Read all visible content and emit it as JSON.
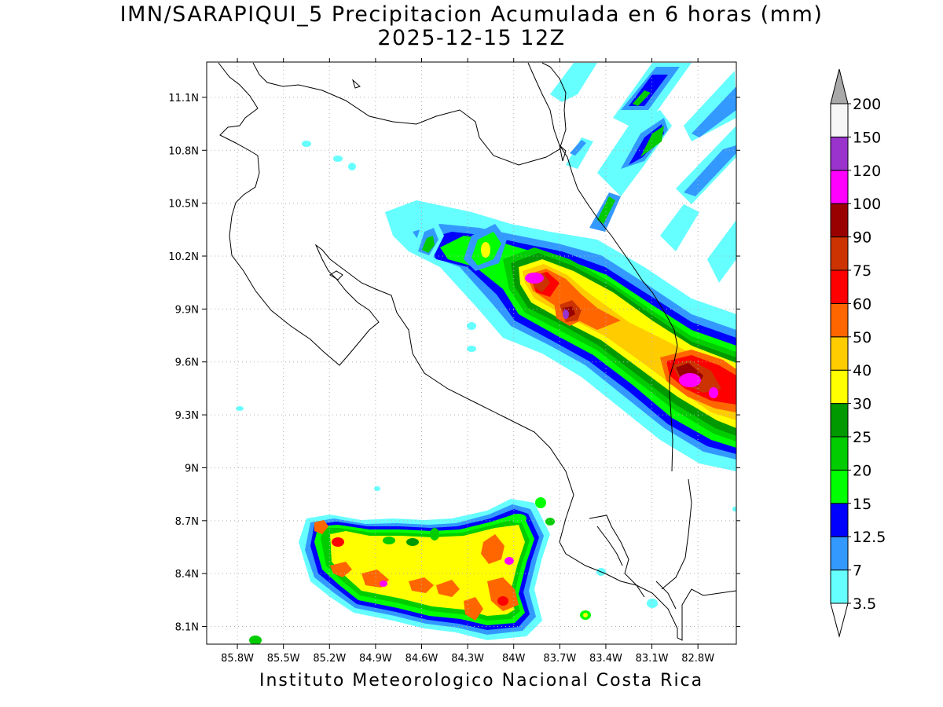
{
  "title": {
    "line1": "IMN/SARAPIQUI_5 Precipitacion Acumulada en 6 horas (mm)",
    "line2": "2025-12-15 12Z"
  },
  "footer": "Instituto Meteorologico Nacional Costa Rica",
  "map": {
    "type": "contour-precipitation-map",
    "lon_range": [
      -86.0,
      -82.55
    ],
    "lat_range": [
      8.0,
      11.3
    ],
    "grid": true,
    "lon_ticks": [
      "85.8W",
      "85.5W",
      "85.2W",
      "84.9W",
      "84.6W",
      "84.3W",
      "84W",
      "83.7W",
      "83.4W",
      "83.1W",
      "82.8W"
    ],
    "lat_ticks": [
      "11.1N",
      "10.8N",
      "10.5N",
      "10.2N",
      "9.9N",
      "9.6N",
      "9.3N",
      "9N",
      "8.7N",
      "8.4N",
      "8.1N"
    ]
  },
  "colorbar": {
    "labels": [
      "3.5",
      "7",
      "12.5",
      "15",
      "20",
      "25",
      "30",
      "40",
      "50",
      "60",
      "75",
      "90",
      "100",
      "120",
      "150",
      "200"
    ],
    "colors": [
      "#66ffff",
      "#3399ff",
      "#0000ff",
      "#00ff00",
      "#00cc00",
      "#009900",
      "#ffff00",
      "#ffcc00",
      "#ff6600",
      "#ff0000",
      "#cc3300",
      "#990000",
      "#ff00ff",
      "#9933cc",
      "#f6f6f6"
    ],
    "over_color": "#a9a9a9",
    "under_color": "#ffffff"
  }
}
